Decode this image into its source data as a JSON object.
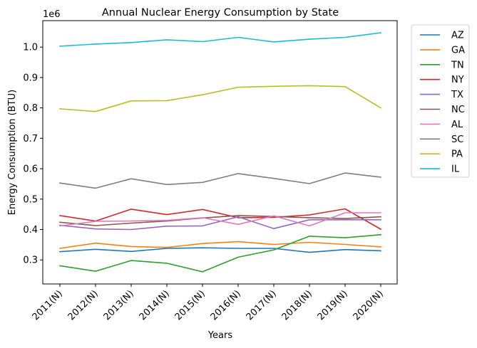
{
  "chart_data": {
    "type": "line",
    "title": "Annual Nuclear Energy Consumption by State",
    "xlabel": "Years",
    "ylabel": "Energy Consumption (BTU)",
    "y_offset_label": "1e6",
    "categories": [
      "2011(N)",
      "2012(N)",
      "2013(N)",
      "2014(N)",
      "2015(N)",
      "2016(N)",
      "2017(N)",
      "2018(N)",
      "2019(N)",
      "2020(N)"
    ],
    "yticks": [
      "0.3",
      "0.4",
      "0.5",
      "0.6",
      "0.7",
      "0.8",
      "0.9",
      "1.0"
    ],
    "ytick_values": [
      0.3,
      0.4,
      0.5,
      0.6,
      0.7,
      0.8,
      0.9,
      1.0
    ],
    "ylim": [
      0.221,
      1.087
    ],
    "y_scale": 1000000,
    "legend_position": "outside-upper-right",
    "grid": false,
    "series": [
      {
        "name": "AZ",
        "color": "#1f77b4",
        "values": [
          0.327,
          0.335,
          0.328,
          0.338,
          0.34,
          0.338,
          0.338,
          0.325,
          0.334,
          0.33
        ]
      },
      {
        "name": "GA",
        "color": "#ff7f0e",
        "values": [
          0.338,
          0.355,
          0.344,
          0.341,
          0.354,
          0.36,
          0.351,
          0.358,
          0.351,
          0.343
        ]
      },
      {
        "name": "TN",
        "color": "#2ca02c",
        "values": [
          0.281,
          0.263,
          0.298,
          0.289,
          0.261,
          0.309,
          0.333,
          0.378,
          0.373,
          0.383
        ]
      },
      {
        "name": "NY",
        "color": "#d62728",
        "values": [
          0.446,
          0.428,
          0.467,
          0.449,
          0.466,
          0.439,
          0.44,
          0.448,
          0.468,
          0.401
        ]
      },
      {
        "name": "TX",
        "color": "#9467bd",
        "values": [
          0.414,
          0.402,
          0.4,
          0.411,
          0.412,
          0.442,
          0.403,
          0.432,
          0.432,
          0.432
        ]
      },
      {
        "name": "NC",
        "color": "#8c564b",
        "values": [
          0.424,
          0.413,
          0.421,
          0.428,
          0.438,
          0.446,
          0.443,
          0.439,
          0.436,
          0.442
        ]
      },
      {
        "name": "AL",
        "color": "#e377c2",
        "values": [
          0.412,
          0.427,
          0.428,
          0.43,
          0.439,
          0.417,
          0.445,
          0.412,
          0.455,
          0.455
        ]
      },
      {
        "name": "SC",
        "color": "#7f7f7f",
        "values": [
          0.553,
          0.536,
          0.567,
          0.548,
          0.555,
          0.584,
          0.568,
          0.551,
          0.586,
          0.572
        ]
      },
      {
        "name": "PA",
        "color": "#bcbd22",
        "values": [
          0.797,
          0.788,
          0.823,
          0.824,
          0.843,
          0.868,
          0.871,
          0.873,
          0.87,
          0.8
        ]
      },
      {
        "name": "IL",
        "color": "#17becf",
        "values": [
          1.003,
          1.01,
          1.015,
          1.024,
          1.018,
          1.032,
          1.017,
          1.026,
          1.032,
          1.047
        ]
      }
    ]
  }
}
